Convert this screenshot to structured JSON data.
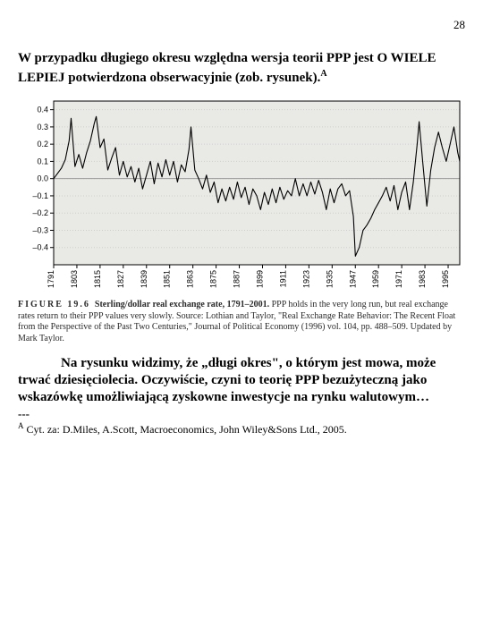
{
  "page_number": "28",
  "heading_html": "W przypadku długiego okresu względna wersja teorii PPP jest O WIELE LEPIEJ potwierdzona obserwacyjnie (zob. rysunek).",
  "heading_sup": "A",
  "chart": {
    "type": "line",
    "ylim": [
      -0.5,
      0.45
    ],
    "yticks": [
      0.4,
      0.3,
      0.2,
      0.1,
      0.0,
      -0.1,
      -0.2,
      -0.3,
      -0.4
    ],
    "ytick_labels": [
      "0.4",
      "0.3",
      "0.2",
      "0.1",
      "0.0",
      "–0.1",
      "–0.2",
      "–0.3",
      "–0.4"
    ],
    "xlim": [
      1791,
      2001
    ],
    "xticks": [
      1791,
      1803,
      1815,
      1827,
      1839,
      1851,
      1863,
      1875,
      1887,
      1899,
      1911,
      1923,
      1935,
      1947,
      1959,
      1971,
      1983,
      1995
    ],
    "line_color": "#000000",
    "grid_color": "#cfcfcf",
    "background_color": "#e9e9e6",
    "tick_fontsize": 9,
    "series": [
      {
        "x": 1791,
        "y": 0.0
      },
      {
        "x": 1793,
        "y": 0.03
      },
      {
        "x": 1795,
        "y": 0.06
      },
      {
        "x": 1797,
        "y": 0.11
      },
      {
        "x": 1799,
        "y": 0.22
      },
      {
        "x": 1800,
        "y": 0.35
      },
      {
        "x": 1802,
        "y": 0.07
      },
      {
        "x": 1804,
        "y": 0.14
      },
      {
        "x": 1806,
        "y": 0.06
      },
      {
        "x": 1808,
        "y": 0.15
      },
      {
        "x": 1810,
        "y": 0.22
      },
      {
        "x": 1812,
        "y": 0.32
      },
      {
        "x": 1813,
        "y": 0.36
      },
      {
        "x": 1815,
        "y": 0.18
      },
      {
        "x": 1817,
        "y": 0.23
      },
      {
        "x": 1819,
        "y": 0.05
      },
      {
        "x": 1821,
        "y": 0.12
      },
      {
        "x": 1823,
        "y": 0.18
      },
      {
        "x": 1825,
        "y": 0.02
      },
      {
        "x": 1827,
        "y": 0.1
      },
      {
        "x": 1829,
        "y": 0.01
      },
      {
        "x": 1831,
        "y": 0.07
      },
      {
        "x": 1833,
        "y": -0.02
      },
      {
        "x": 1835,
        "y": 0.06
      },
      {
        "x": 1837,
        "y": -0.06
      },
      {
        "x": 1839,
        "y": 0.02
      },
      {
        "x": 1841,
        "y": 0.1
      },
      {
        "x": 1843,
        "y": -0.03
      },
      {
        "x": 1845,
        "y": 0.09
      },
      {
        "x": 1847,
        "y": 0.01
      },
      {
        "x": 1849,
        "y": 0.11
      },
      {
        "x": 1851,
        "y": 0.02
      },
      {
        "x": 1853,
        "y": 0.1
      },
      {
        "x": 1855,
        "y": -0.02
      },
      {
        "x": 1857,
        "y": 0.08
      },
      {
        "x": 1859,
        "y": 0.04
      },
      {
        "x": 1861,
        "y": 0.17
      },
      {
        "x": 1862,
        "y": 0.3
      },
      {
        "x": 1864,
        "y": 0.05
      },
      {
        "x": 1866,
        "y": 0.0
      },
      {
        "x": 1868,
        "y": -0.06
      },
      {
        "x": 1870,
        "y": 0.02
      },
      {
        "x": 1872,
        "y": -0.08
      },
      {
        "x": 1874,
        "y": -0.02
      },
      {
        "x": 1876,
        "y": -0.14
      },
      {
        "x": 1878,
        "y": -0.06
      },
      {
        "x": 1880,
        "y": -0.13
      },
      {
        "x": 1882,
        "y": -0.05
      },
      {
        "x": 1884,
        "y": -0.12
      },
      {
        "x": 1886,
        "y": -0.02
      },
      {
        "x": 1888,
        "y": -0.11
      },
      {
        "x": 1890,
        "y": -0.05
      },
      {
        "x": 1892,
        "y": -0.15
      },
      {
        "x": 1894,
        "y": -0.06
      },
      {
        "x": 1896,
        "y": -0.1
      },
      {
        "x": 1898,
        "y": -0.18
      },
      {
        "x": 1900,
        "y": -0.08
      },
      {
        "x": 1902,
        "y": -0.15
      },
      {
        "x": 1904,
        "y": -0.06
      },
      {
        "x": 1906,
        "y": -0.14
      },
      {
        "x": 1908,
        "y": -0.05
      },
      {
        "x": 1910,
        "y": -0.12
      },
      {
        "x": 1912,
        "y": -0.07
      },
      {
        "x": 1914,
        "y": -0.1
      },
      {
        "x": 1916,
        "y": 0.0
      },
      {
        "x": 1918,
        "y": -0.1
      },
      {
        "x": 1920,
        "y": -0.03
      },
      {
        "x": 1922,
        "y": -0.1
      },
      {
        "x": 1924,
        "y": -0.02
      },
      {
        "x": 1926,
        "y": -0.09
      },
      {
        "x": 1928,
        "y": -0.01
      },
      {
        "x": 1930,
        "y": -0.08
      },
      {
        "x": 1932,
        "y": -0.18
      },
      {
        "x": 1934,
        "y": -0.06
      },
      {
        "x": 1936,
        "y": -0.14
      },
      {
        "x": 1938,
        "y": -0.06
      },
      {
        "x": 1940,
        "y": -0.03
      },
      {
        "x": 1942,
        "y": -0.1
      },
      {
        "x": 1944,
        "y": -0.07
      },
      {
        "x": 1946,
        "y": -0.22
      },
      {
        "x": 1947,
        "y": -0.45
      },
      {
        "x": 1949,
        "y": -0.4
      },
      {
        "x": 1951,
        "y": -0.3
      },
      {
        "x": 1953,
        "y": -0.27
      },
      {
        "x": 1955,
        "y": -0.23
      },
      {
        "x": 1957,
        "y": -0.18
      },
      {
        "x": 1959,
        "y": -0.14
      },
      {
        "x": 1961,
        "y": -0.1
      },
      {
        "x": 1963,
        "y": -0.05
      },
      {
        "x": 1965,
        "y": -0.13
      },
      {
        "x": 1967,
        "y": -0.04
      },
      {
        "x": 1969,
        "y": -0.18
      },
      {
        "x": 1971,
        "y": -0.08
      },
      {
        "x": 1973,
        "y": -0.02
      },
      {
        "x": 1975,
        "y": -0.18
      },
      {
        "x": 1977,
        "y": -0.02
      },
      {
        "x": 1979,
        "y": 0.2
      },
      {
        "x": 1980,
        "y": 0.33
      },
      {
        "x": 1982,
        "y": 0.08
      },
      {
        "x": 1984,
        "y": -0.16
      },
      {
        "x": 1986,
        "y": 0.05
      },
      {
        "x": 1988,
        "y": 0.18
      },
      {
        "x": 1990,
        "y": 0.27
      },
      {
        "x": 1992,
        "y": 0.18
      },
      {
        "x": 1994,
        "y": 0.1
      },
      {
        "x": 1996,
        "y": 0.2
      },
      {
        "x": 1998,
        "y": 0.3
      },
      {
        "x": 2000,
        "y": 0.15
      },
      {
        "x": 2001,
        "y": 0.1
      }
    ]
  },
  "figure_caption": {
    "label": "FIGURE 19.6",
    "title": "Sterling/dollar real exchange rate, 1791–2001.",
    "text": " PPP holds in the very long run, but real exchange rates return to their PPP values very slowly. Source: Lothian and Taylor, \"Real Exchange Rate Behavior: The Recent Float from the Perspective of the Past Two Centuries,\" Journal of Political Economy (1996) vol. 104, pp. 488–509. Updated by Mark Taylor."
  },
  "body_text": "Na rysunku widzimy, że „długi okres\", o którym jest mowa, może trwać dziesięciolecia. Oczywiście, czyni to teorię PPP bezużyteczną jako wskazówkę umożliwiającą zyskowne inwestycje na rynku walutowym…",
  "separator": "---",
  "footnote_sup": "A",
  "footnote_text": " Cyt. za: D.Miles, A.Scott, Macroeconomics, John Wiley&Sons Ltd., 2005."
}
